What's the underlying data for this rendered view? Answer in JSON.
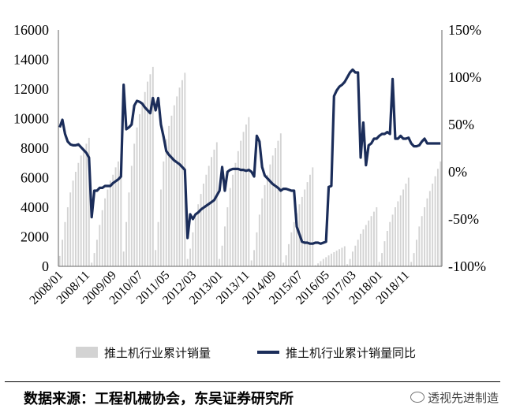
{
  "chart_data": {
    "type": "bar+line",
    "left_axis": {
      "ylim": [
        0,
        16000
      ],
      "ticks": [
        "0",
        "2000",
        "4000",
        "6000",
        "8000",
        "10000",
        "12000",
        "14000",
        "16000"
      ]
    },
    "right_axis": {
      "ylim": [
        -100,
        150
      ],
      "ticks": [
        "-100%",
        "-50%",
        "0%",
        "50%",
        "100%",
        "150%"
      ]
    },
    "x_ticks": [
      "2008/01",
      "2008/11",
      "2009/09",
      "2010/07",
      "2011/05",
      "2012/03",
      "2013/01",
      "2013/11",
      "2014/09",
      "2015/07",
      "2016/05",
      "2017/03",
      "2018/01",
      "2018/11"
    ],
    "x_start": "2008/01",
    "x_end": "2018/12",
    "series": [
      {
        "name": "推土机行业累计销量",
        "kind": "bar",
        "color": "#d3d3d3",
        "axis": "left",
        "values": [
          700,
          1800,
          3000,
          4000,
          5000,
          5800,
          6400,
          7000,
          7500,
          7900,
          8300,
          8700,
          250,
          900,
          1800,
          2800,
          3800,
          4600,
          5200,
          5800,
          6200,
          6700,
          7100,
          7600,
          1000,
          3000,
          5000,
          6800,
          8300,
          9400,
          10300,
          11100,
          11800,
          12500,
          13000,
          13500,
          1100,
          3000,
          5200,
          7100,
          8600,
          9500,
          10200,
          10900,
          11500,
          12100,
          12600,
          13100,
          500,
          1200,
          2300,
          3300,
          4200,
          4900,
          5600,
          6200,
          6800,
          7400,
          7900,
          8400,
          500,
          1400,
          2700,
          4000,
          5300,
          6200,
          7000,
          7800,
          8500,
          9100,
          9600,
          10100,
          400,
          1100,
          2300,
          3500,
          4600,
          5500,
          6200,
          6900,
          7500,
          8000,
          8500,
          9000,
          250,
          750,
          1500,
          2300,
          3000,
          3600,
          4200,
          4700,
          5200,
          5700,
          6200,
          6700,
          80,
          200,
          350,
          500,
          620,
          740,
          860,
          960,
          1060,
          1160,
          1260,
          1360,
          150,
          500,
          1000,
          1400,
          1800,
          2200,
          2500,
          2800,
          3100,
          3400,
          3700,
          4000,
          300,
          900,
          1700,
          2400,
          3000,
          3500,
          4000,
          4400,
          4800,
          5200,
          5600,
          6000,
          300,
          900,
          1800,
          2700,
          3400,
          4000,
          4600,
          5100,
          5600,
          6100,
          6600,
          7100
        ]
      },
      {
        "name": "推土机行业累计销量同比",
        "kind": "line",
        "color": "#1b2d5a",
        "axis": "right",
        "values": [
          47,
          55,
          40,
          32,
          29,
          28,
          28,
          29,
          26,
          23,
          20,
          15,
          -48,
          -20,
          -20,
          -17,
          -17,
          -15,
          -15,
          -15,
          -12,
          -10,
          -8,
          -5,
          92,
          45,
          47,
          50,
          70,
          75,
          74,
          72,
          68,
          65,
          62,
          78,
          65,
          78,
          50,
          37,
          22,
          18,
          15,
          12,
          10,
          8,
          5,
          2,
          -70,
          -45,
          -50,
          -45,
          -43,
          -40,
          -38,
          -36,
          -34,
          -32,
          -30,
          -25,
          -20,
          5,
          -20,
          0,
          2,
          3,
          3,
          3,
          2,
          2,
          1,
          2,
          0,
          -5,
          38,
          32,
          5,
          -4,
          -7,
          -10,
          -13,
          -15,
          -17,
          -20,
          -18,
          -18,
          -19,
          -20,
          -20,
          -58,
          -66,
          -74,
          -75,
          -75,
          -76,
          -76,
          -75,
          -75,
          -76,
          -75,
          -74,
          -16,
          -15,
          80,
          86,
          90,
          92,
          95,
          100,
          105,
          108,
          105,
          105,
          15,
          52,
          7,
          28,
          30,
          35,
          35,
          38,
          40,
          40,
          42,
          40,
          98,
          35,
          35,
          38,
          35,
          35,
          36,
          30,
          27,
          27,
          28,
          32,
          35,
          30,
          30,
          30,
          30,
          30,
          30
        ]
      }
    ]
  },
  "legend": {
    "bar_label": "推土机行业累计销量",
    "line_label": "推土机行业累计销量同比"
  },
  "footer": {
    "source": "数据来源：工程机械协会，东吴证券研究所",
    "watermark": "透视先进制造"
  }
}
